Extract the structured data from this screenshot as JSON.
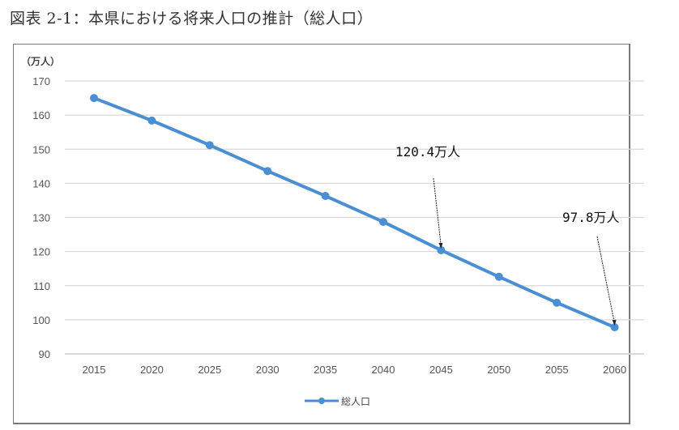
{
  "title": "図表 2-1：本県における将来人口の推計（総人口）",
  "chart_data": {
    "type": "line",
    "title": "図表 2-1：本県における将来人口の推計（総人口）",
    "xlabel": "",
    "ylabel": "（万人）",
    "ylim": [
      90,
      170
    ],
    "yticks": [
      90,
      100,
      110,
      120,
      130,
      140,
      150,
      160,
      170
    ],
    "grid": true,
    "legend_position": "bottom",
    "categories": [
      "2015",
      "2020",
      "2025",
      "2030",
      "2035",
      "2040",
      "2045",
      "2050",
      "2055",
      "2060"
    ],
    "series": [
      {
        "name": "総人口",
        "color": "#4a8fd4",
        "values": [
          165.0,
          158.4,
          151.2,
          143.6,
          136.3,
          128.7,
          120.4,
          112.6,
          105.0,
          97.8
        ]
      }
    ],
    "annotations": [
      {
        "text": "120.4万人",
        "x": "2045",
        "y": 120.4
      },
      {
        "text": "97.8万人",
        "x": "2060",
        "y": 97.8
      }
    ]
  },
  "colors": {
    "line": "#4a8fd4",
    "grid": "#d9d9d9",
    "frame": "#7a7a7a",
    "tick": "#555555"
  }
}
